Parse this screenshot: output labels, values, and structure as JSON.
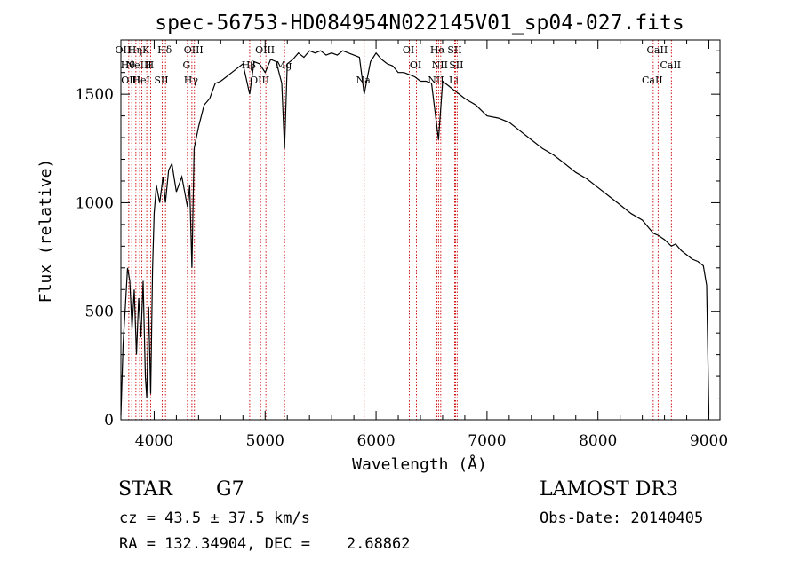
{
  "title": "spec-56753-HD084954N022145V01_sp04-027.fits",
  "info": {
    "class_label": "STAR",
    "subclass": "G7",
    "survey": "LAMOST DR3",
    "cz": "cz = 43.5 ± 37.5 km/s",
    "obs_date": "Obs-Date: 20140405",
    "coords": "RA = 132.34904, DEC =    2.68862"
  },
  "colors": {
    "spectrum": "#000000",
    "line_marker": "#cc0000",
    "axes": "#000000"
  },
  "chart_data": {
    "type": "line",
    "title": "spec-56753-HD084954N022145V01_sp04-027.fits",
    "xlabel": "Wavelength (Å)",
    "ylabel": "Flux (relative)",
    "xlim": [
      3700,
      9100
    ],
    "ylim": [
      0,
      1750
    ],
    "xticks": [
      4000,
      5000,
      6000,
      7000,
      8000,
      9000
    ],
    "yticks": [
      0,
      500,
      1000,
      1500
    ],
    "grid": false,
    "legend": "none",
    "series": [
      {
        "x": [
          3700,
          3720,
          3740,
          3760,
          3780,
          3800,
          3820,
          3840,
          3860,
          3880,
          3900,
          3920,
          3933,
          3950,
          3968,
          3985,
          4000,
          4020,
          4050,
          4080,
          4101,
          4130,
          4160,
          4200,
          4250,
          4300,
          4320,
          4340,
          4360,
          4400,
          4450,
          4500,
          4550,
          4600,
          4650,
          4700,
          4750,
          4800,
          4861,
          4900,
          4950,
          5000,
          5050,
          5100,
          5150,
          5175,
          5200,
          5250,
          5300,
          5350,
          5400,
          5450,
          5500,
          5550,
          5600,
          5650,
          5700,
          5750,
          5800,
          5850,
          5893,
          5950,
          6000,
          6050,
          6100,
          6150,
          6200,
          6250,
          6300,
          6350,
          6400,
          6450,
          6500,
          6563,
          6600,
          6650,
          6700,
          6750,
          6800,
          6900,
          7000,
          7100,
          7200,
          7300,
          7400,
          7500,
          7600,
          7700,
          7800,
          7900,
          8000,
          8100,
          8200,
          8300,
          8400,
          8498,
          8542,
          8600,
          8662,
          8700,
          8750,
          8800,
          8850,
          8900,
          8950,
          8980,
          9000
        ],
        "y": [
          20,
          350,
          520,
          700,
          640,
          420,
          600,
          300,
          560,
          380,
          640,
          200,
          100,
          520,
          120,
          690,
          950,
          1080,
          1000,
          1120,
          1000,
          1150,
          1180,
          1050,
          1120,
          980,
          1080,
          700,
          1250,
          1350,
          1450,
          1480,
          1550,
          1560,
          1580,
          1600,
          1620,
          1640,
          1500,
          1650,
          1640,
          1600,
          1660,
          1650,
          1550,
          1250,
          1640,
          1660,
          1690,
          1670,
          1700,
          1690,
          1700,
          1680,
          1690,
          1680,
          1700,
          1690,
          1680,
          1670,
          1500,
          1650,
          1690,
          1660,
          1640,
          1630,
          1600,
          1600,
          1590,
          1580,
          1560,
          1560,
          1550,
          1290,
          1560,
          1540,
          1520,
          1500,
          1480,
          1450,
          1400,
          1390,
          1370,
          1330,
          1290,
          1250,
          1220,
          1180,
          1140,
          1110,
          1070,
          1030,
          990,
          950,
          920,
          860,
          850,
          830,
          800,
          810,
          780,
          760,
          740,
          730,
          710,
          620,
          30
        ]
      }
    ],
    "line_markers": [
      {
        "wavelength": 3727,
        "label": "OII"
      },
      {
        "wavelength": 3771,
        "label": "Hθ"
      },
      {
        "wavelength": 3798,
        "label": "OIII"
      },
      {
        "wavelength": 3835,
        "label": "Hη"
      },
      {
        "wavelength": 3869,
        "label": "NeIII"
      },
      {
        "wavelength": 3889,
        "label": "HeI"
      },
      {
        "wavelength": 3933,
        "label": "K"
      },
      {
        "wavelength": 3968,
        "label": "H"
      },
      {
        "wavelength": 4072,
        "label": "SII"
      },
      {
        "wavelength": 4102,
        "label": "Hδ"
      },
      {
        "wavelength": 4300,
        "label": "G"
      },
      {
        "wavelength": 4340,
        "label": "Hγ"
      },
      {
        "wavelength": 4363,
        "label": "OIII"
      },
      {
        "wavelength": 4861,
        "label": "Hβ"
      },
      {
        "wavelength": 4959,
        "label": "OIII"
      },
      {
        "wavelength": 5007,
        "label": "OIII"
      },
      {
        "wavelength": 5175,
        "label": "Mg"
      },
      {
        "wavelength": 5893,
        "label": "Na"
      },
      {
        "wavelength": 6300,
        "label": "OI"
      },
      {
        "wavelength": 6364,
        "label": "OI"
      },
      {
        "wavelength": 6548,
        "label": "NII"
      },
      {
        "wavelength": 6563,
        "label": "Hα"
      },
      {
        "wavelength": 6583,
        "label": "NII"
      },
      {
        "wavelength": 6708,
        "label": "Li"
      },
      {
        "wavelength": 6716,
        "label": "SII"
      },
      {
        "wavelength": 6731,
        "label": "SII"
      },
      {
        "wavelength": 8498,
        "label": "CaII"
      },
      {
        "wavelength": 8542,
        "label": "CaII"
      },
      {
        "wavelength": 8662,
        "label": "CaII"
      }
    ]
  }
}
